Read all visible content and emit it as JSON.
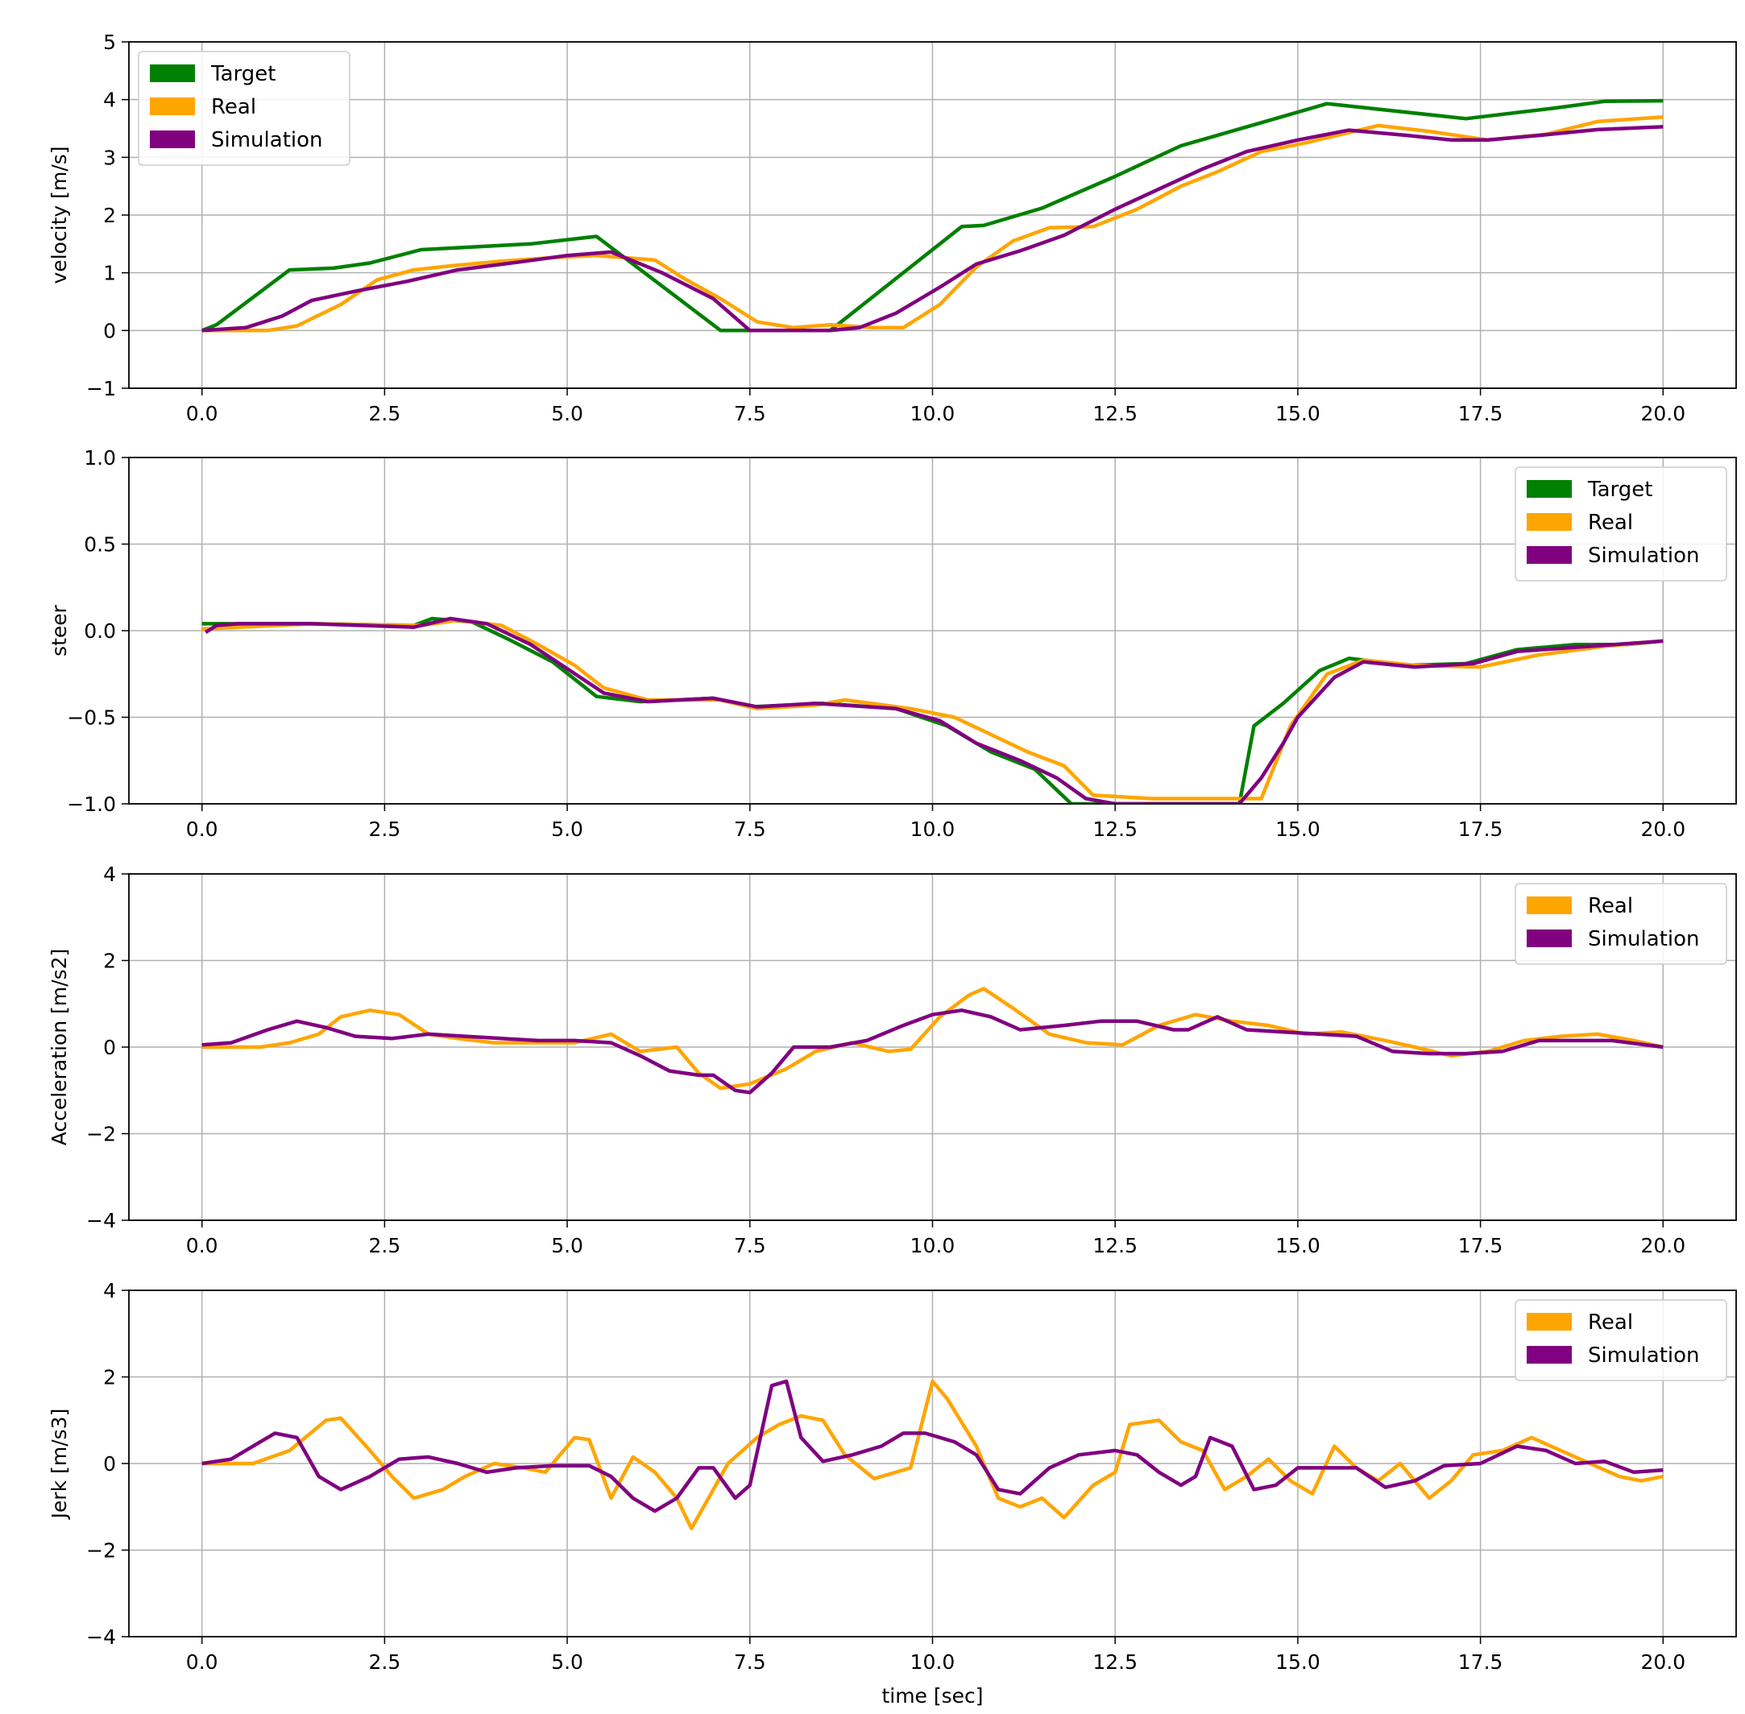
{
  "colors": {
    "Target": "#008000",
    "Real": "#ffa500",
    "Simulation": "#800080",
    "grid": "#b0b0b0"
  },
  "chart_data": [
    {
      "type": "line",
      "title": "",
      "xlabel": "",
      "ylabel": "velocity [m/s]",
      "xlim": [
        -1,
        21
      ],
      "ylim": [
        -1,
        5
      ],
      "xticks": [
        "0.0",
        "2.5",
        "5.0",
        "7.5",
        "10.0",
        "12.5",
        "15.0",
        "17.5",
        "20.0"
      ],
      "yticks": [
        "5",
        "4",
        "3",
        "2",
        "1",
        "0",
        "−1"
      ],
      "ytick_values": [
        5,
        4,
        3,
        2,
        1,
        0,
        -1
      ],
      "legend": "top-left",
      "series": [
        {
          "name": "Target",
          "x": [
            0,
            0.2,
            1.2,
            1.8,
            2.3,
            3,
            4.5,
            5.4,
            7.1,
            8.6,
            10.4,
            10.7,
            11.5,
            12.5,
            13.4,
            14.5,
            15.4,
            17.3,
            18.5,
            19.2,
            20
          ],
          "y": [
            0,
            0.1,
            1.05,
            1.08,
            1.17,
            1.4,
            1.5,
            1.63,
            0,
            0,
            1.8,
            1.82,
            2.12,
            2.67,
            3.2,
            3.6,
            3.93,
            3.67,
            3.85,
            3.97,
            3.98
          ]
        },
        {
          "name": "Real",
          "x": [
            0,
            0.9,
            1.3,
            1.9,
            2.4,
            2.9,
            3.4,
            4.1,
            4.9,
            5.4,
            6.2,
            6.6,
            7.1,
            7.6,
            8.1,
            8.6,
            9.2,
            9.6,
            10.1,
            10.6,
            11.1,
            11.6,
            12.2,
            12.8,
            13.4,
            13.9,
            14.5,
            15.1,
            15.6,
            16.1,
            16.8,
            17.6,
            18.4,
            19.1,
            20
          ],
          "y": [
            0,
            0,
            0.08,
            0.45,
            0.88,
            1.05,
            1.12,
            1.2,
            1.27,
            1.3,
            1.22,
            0.9,
            0.55,
            0.15,
            0.05,
            0.1,
            0.05,
            0.05,
            0.45,
            1.1,
            1.55,
            1.78,
            1.8,
            2.1,
            2.5,
            2.75,
            3.1,
            3.25,
            3.4,
            3.55,
            3.45,
            3.3,
            3.4,
            3.62,
            3.7
          ]
        },
        {
          "name": "Simulation",
          "x": [
            0,
            0.6,
            1.1,
            1.5,
            2.1,
            2.8,
            3.5,
            4.3,
            5.0,
            5.6,
            6.3,
            7.0,
            7.5,
            8.0,
            8.6,
            9.0,
            9.5,
            10.1,
            10.6,
            11.2,
            11.8,
            12.5,
            13.1,
            13.7,
            14.3,
            15.0,
            15.7,
            16.5,
            17.1,
            17.6,
            18.3,
            19.1,
            20
          ],
          "y": [
            0,
            0.05,
            0.25,
            0.52,
            0.68,
            0.85,
            1.05,
            1.18,
            1.3,
            1.36,
            1.0,
            0.55,
            0,
            0,
            0,
            0.05,
            0.3,
            0.75,
            1.15,
            1.38,
            1.65,
            2.1,
            2.45,
            2.8,
            3.1,
            3.3,
            3.47,
            3.38,
            3.3,
            3.3,
            3.38,
            3.48,
            3.53
          ]
        }
      ]
    },
    {
      "type": "line",
      "title": "",
      "xlabel": "",
      "ylabel": "steer",
      "xlim": [
        -1,
        21
      ],
      "ylim": [
        -1,
        1
      ],
      "xticks": [
        "0.0",
        "2.5",
        "5.0",
        "7.5",
        "10.0",
        "12.5",
        "15.0",
        "17.5",
        "20.0"
      ],
      "yticks": [
        "1.0",
        "0.5",
        "0.0",
        "−0.5",
        "−1.0"
      ],
      "ytick_values": [
        1,
        0.5,
        0,
        -0.5,
        -1
      ],
      "legend": "top-right",
      "series": [
        {
          "name": "Target",
          "x": [
            0,
            1.5,
            2.9,
            3.15,
            3.7,
            4.2,
            4.8,
            5.4,
            6.0,
            7.0,
            7.5,
            8.5,
            9.5,
            10.2,
            10.8,
            11.4,
            11.9,
            12.3,
            14.2,
            14.4,
            14.8,
            15.3,
            15.7,
            16.5,
            17.3,
            18.0,
            18.8,
            19.5,
            20
          ],
          "y": [
            0.04,
            0.04,
            0.03,
            0.07,
            0.05,
            -0.05,
            -0.18,
            -0.38,
            -0.41,
            -0.39,
            -0.44,
            -0.42,
            -0.45,
            -0.55,
            -0.7,
            -0.8,
            -1.0,
            -1.0,
            -1.0,
            -0.55,
            -0.42,
            -0.23,
            -0.16,
            -0.2,
            -0.19,
            -0.11,
            -0.08,
            -0.08,
            -0.06
          ]
        },
        {
          "name": "Real",
          "x": [
            0,
            1.5,
            3.0,
            3.5,
            4.1,
            4.6,
            5.1,
            5.5,
            6.1,
            7.1,
            7.6,
            8.4,
            8.8,
            9.7,
            10.3,
            10.8,
            11.3,
            11.8,
            12.2,
            13.0,
            14.5,
            14.9,
            15.4,
            15.9,
            16.6,
            17.5,
            18.3,
            19.2,
            20
          ],
          "y": [
            0.01,
            0.04,
            0.03,
            0.06,
            0.03,
            -0.08,
            -0.2,
            -0.33,
            -0.4,
            -0.4,
            -0.45,
            -0.43,
            -0.4,
            -0.45,
            -0.5,
            -0.6,
            -0.7,
            -0.78,
            -0.95,
            -0.97,
            -0.97,
            -0.55,
            -0.25,
            -0.17,
            -0.2,
            -0.21,
            -0.14,
            -0.09,
            -0.06
          ]
        },
        {
          "name": "Simulation",
          "x": [
            0.05,
            0.2,
            0.5,
            1.5,
            2.9,
            3.4,
            3.9,
            4.5,
            5.0,
            5.5,
            6.1,
            7.0,
            7.6,
            8.4,
            9.5,
            10.1,
            10.6,
            11.2,
            11.7,
            12.1,
            12.5,
            14.2,
            14.5,
            14.8,
            15.0,
            15.5,
            15.9,
            16.6,
            17.4,
            18.0,
            19.0,
            20
          ],
          "y": [
            -0.01,
            0.03,
            0.04,
            0.04,
            0.02,
            0.07,
            0.04,
            -0.08,
            -0.22,
            -0.36,
            -0.41,
            -0.39,
            -0.44,
            -0.42,
            -0.45,
            -0.52,
            -0.65,
            -0.75,
            -0.85,
            -0.97,
            -1.0,
            -1.0,
            -0.85,
            -0.65,
            -0.5,
            -0.27,
            -0.18,
            -0.21,
            -0.19,
            -0.12,
            -0.09,
            -0.06
          ]
        }
      ]
    },
    {
      "type": "line",
      "title": "",
      "xlabel": "",
      "ylabel": "Acceleration [m/s2]",
      "xlim": [
        -1,
        21
      ],
      "ylim": [
        -4,
        4
      ],
      "xticks": [
        "0.0",
        "2.5",
        "5.0",
        "7.5",
        "10.0",
        "12.5",
        "15.0",
        "17.5",
        "20.0"
      ],
      "yticks": [
        "4",
        "2",
        "0",
        "−2",
        "−4"
      ],
      "ytick_values": [
        4,
        2,
        0,
        -2,
        -4
      ],
      "legend": "top-right",
      "series": [
        {
          "name": "Real",
          "x": [
            0,
            0.8,
            1.2,
            1.6,
            1.9,
            2.3,
            2.7,
            3.1,
            3.5,
            4.0,
            4.6,
            5.1,
            5.6,
            6.0,
            6.5,
            6.8,
            7.1,
            7.5,
            8.0,
            8.4,
            8.9,
            9.4,
            9.7,
            10.1,
            10.5,
            10.7,
            11.1,
            11.6,
            12.1,
            12.6,
            13.1,
            13.6,
            14.1,
            14.6,
            15.1,
            15.6,
            16.2,
            16.6,
            17.1,
            17.6,
            18.1,
            18.6,
            19.1,
            19.6,
            20
          ],
          "y": [
            0,
            0,
            0.1,
            0.3,
            0.7,
            0.85,
            0.75,
            0.3,
            0.2,
            0.1,
            0.1,
            0.1,
            0.3,
            -0.1,
            0.0,
            -0.6,
            -0.95,
            -0.85,
            -0.5,
            -0.1,
            0.1,
            -0.1,
            -0.05,
            0.7,
            1.2,
            1.35,
            0.9,
            0.3,
            0.1,
            0.05,
            0.5,
            0.75,
            0.6,
            0.5,
            0.3,
            0.35,
            0.15,
            0.0,
            -0.2,
            -0.1,
            0.15,
            0.25,
            0.3,
            0.15,
            0
          ]
        },
        {
          "name": "Simulation",
          "x": [
            0,
            0.4,
            0.9,
            1.3,
            1.7,
            2.1,
            2.6,
            3.1,
            3.6,
            4.1,
            4.6,
            5.1,
            5.6,
            6.0,
            6.4,
            6.8,
            7.0,
            7.3,
            7.5,
            7.8,
            8.1,
            8.6,
            9.1,
            9.6,
            10.0,
            10.4,
            10.8,
            11.2,
            11.8,
            12.3,
            12.8,
            13.3,
            13.5,
            13.9,
            14.3,
            14.8,
            15.3,
            15.8,
            16.3,
            16.8,
            17.3,
            17.8,
            18.3,
            18.8,
            19.3,
            20
          ],
          "y": [
            0.05,
            0.1,
            0.4,
            0.6,
            0.45,
            0.25,
            0.2,
            0.3,
            0.25,
            0.2,
            0.15,
            0.15,
            0.1,
            -0.2,
            -0.55,
            -0.65,
            -0.65,
            -1.0,
            -1.05,
            -0.6,
            0.0,
            0.0,
            0.15,
            0.5,
            0.75,
            0.85,
            0.7,
            0.4,
            0.5,
            0.6,
            0.6,
            0.4,
            0.4,
            0.7,
            0.4,
            0.35,
            0.3,
            0.25,
            -0.1,
            -0.15,
            -0.15,
            -0.1,
            0.15,
            0.15,
            0.15,
            0
          ]
        }
      ]
    },
    {
      "type": "line",
      "title": "",
      "xlabel": "time [sec]",
      "ylabel": "Jerk [m/s3]",
      "xlim": [
        -1,
        21
      ],
      "ylim": [
        -4,
        4
      ],
      "xticks": [
        "0.0",
        "2.5",
        "5.0",
        "7.5",
        "10.0",
        "12.5",
        "15.0",
        "17.5",
        "20.0"
      ],
      "yticks": [
        "4",
        "2",
        "0",
        "−2",
        "−4"
      ],
      "ytick_values": [
        4,
        2,
        0,
        -2,
        -4
      ],
      "legend": "top-right",
      "series": [
        {
          "name": "Real",
          "x": [
            0,
            0.7,
            1.2,
            1.7,
            1.9,
            2.3,
            2.6,
            2.9,
            3.3,
            3.6,
            4.0,
            4.4,
            4.7,
            5.1,
            5.3,
            5.6,
            5.9,
            6.2,
            6.5,
            6.7,
            6.9,
            7.2,
            7.6,
            7.9,
            8.2,
            8.5,
            8.8,
            9.2,
            9.7,
            10.0,
            10.2,
            10.6,
            10.9,
            11.2,
            11.5,
            11.8,
            12.2,
            12.5,
            12.7,
            13.1,
            13.4,
            13.7,
            14.0,
            14.3,
            14.6,
            14.9,
            15.2,
            15.5,
            15.8,
            16.1,
            16.4,
            16.8,
            17.1,
            17.4,
            17.8,
            18.2,
            18.6,
            19.0,
            19.4,
            19.7,
            20
          ],
          "y": [
            0,
            0,
            0.3,
            1.0,
            1.05,
            0.3,
            -0.3,
            -0.8,
            -0.6,
            -0.3,
            0.0,
            -0.1,
            -0.2,
            0.6,
            0.55,
            -0.8,
            0.15,
            -0.2,
            -0.8,
            -1.5,
            -0.9,
            0.0,
            0.6,
            0.9,
            1.1,
            1.0,
            0.2,
            -0.35,
            -0.1,
            1.9,
            1.5,
            0.4,
            -0.8,
            -1.0,
            -0.8,
            -1.25,
            -0.5,
            -0.2,
            0.9,
            1.0,
            0.5,
            0.3,
            -0.6,
            -0.3,
            0.1,
            -0.4,
            -0.7,
            0.4,
            -0.1,
            -0.4,
            0.0,
            -0.8,
            -0.4,
            0.2,
            0.3,
            0.6,
            0.3,
            0.0,
            -0.3,
            -0.4,
            -0.3
          ]
        },
        {
          "name": "Simulation",
          "x": [
            0,
            0.4,
            0.8,
            1.0,
            1.3,
            1.6,
            1.9,
            2.3,
            2.7,
            3.1,
            3.5,
            3.9,
            4.3,
            4.8,
            5.3,
            5.6,
            5.9,
            6.2,
            6.5,
            6.8,
            7.0,
            7.3,
            7.5,
            7.8,
            8.0,
            8.2,
            8.5,
            8.9,
            9.3,
            9.6,
            9.9,
            10.3,
            10.6,
            10.9,
            11.2,
            11.6,
            12.0,
            12.5,
            12.8,
            13.1,
            13.4,
            13.6,
            13.8,
            14.1,
            14.4,
            14.7,
            15.0,
            15.4,
            15.8,
            16.2,
            16.6,
            17.0,
            17.5,
            18.0,
            18.4,
            18.8,
            19.2,
            19.6,
            20
          ],
          "y": [
            0,
            0.1,
            0.5,
            0.7,
            0.6,
            -0.3,
            -0.6,
            -0.3,
            0.1,
            0.15,
            0.0,
            -0.2,
            -0.1,
            -0.05,
            -0.05,
            -0.3,
            -0.8,
            -1.1,
            -0.8,
            -0.1,
            -0.1,
            -0.8,
            -0.5,
            1.8,
            1.9,
            0.6,
            0.05,
            0.2,
            0.4,
            0.7,
            0.7,
            0.5,
            0.2,
            -0.6,
            -0.7,
            -0.1,
            0.2,
            0.3,
            0.2,
            -0.2,
            -0.5,
            -0.3,
            0.6,
            0.4,
            -0.6,
            -0.5,
            -0.1,
            -0.1,
            -0.1,
            -0.55,
            -0.4,
            -0.05,
            0.0,
            0.4,
            0.3,
            0.0,
            0.05,
            -0.2,
            -0.15
          ]
        }
      ]
    }
  ]
}
